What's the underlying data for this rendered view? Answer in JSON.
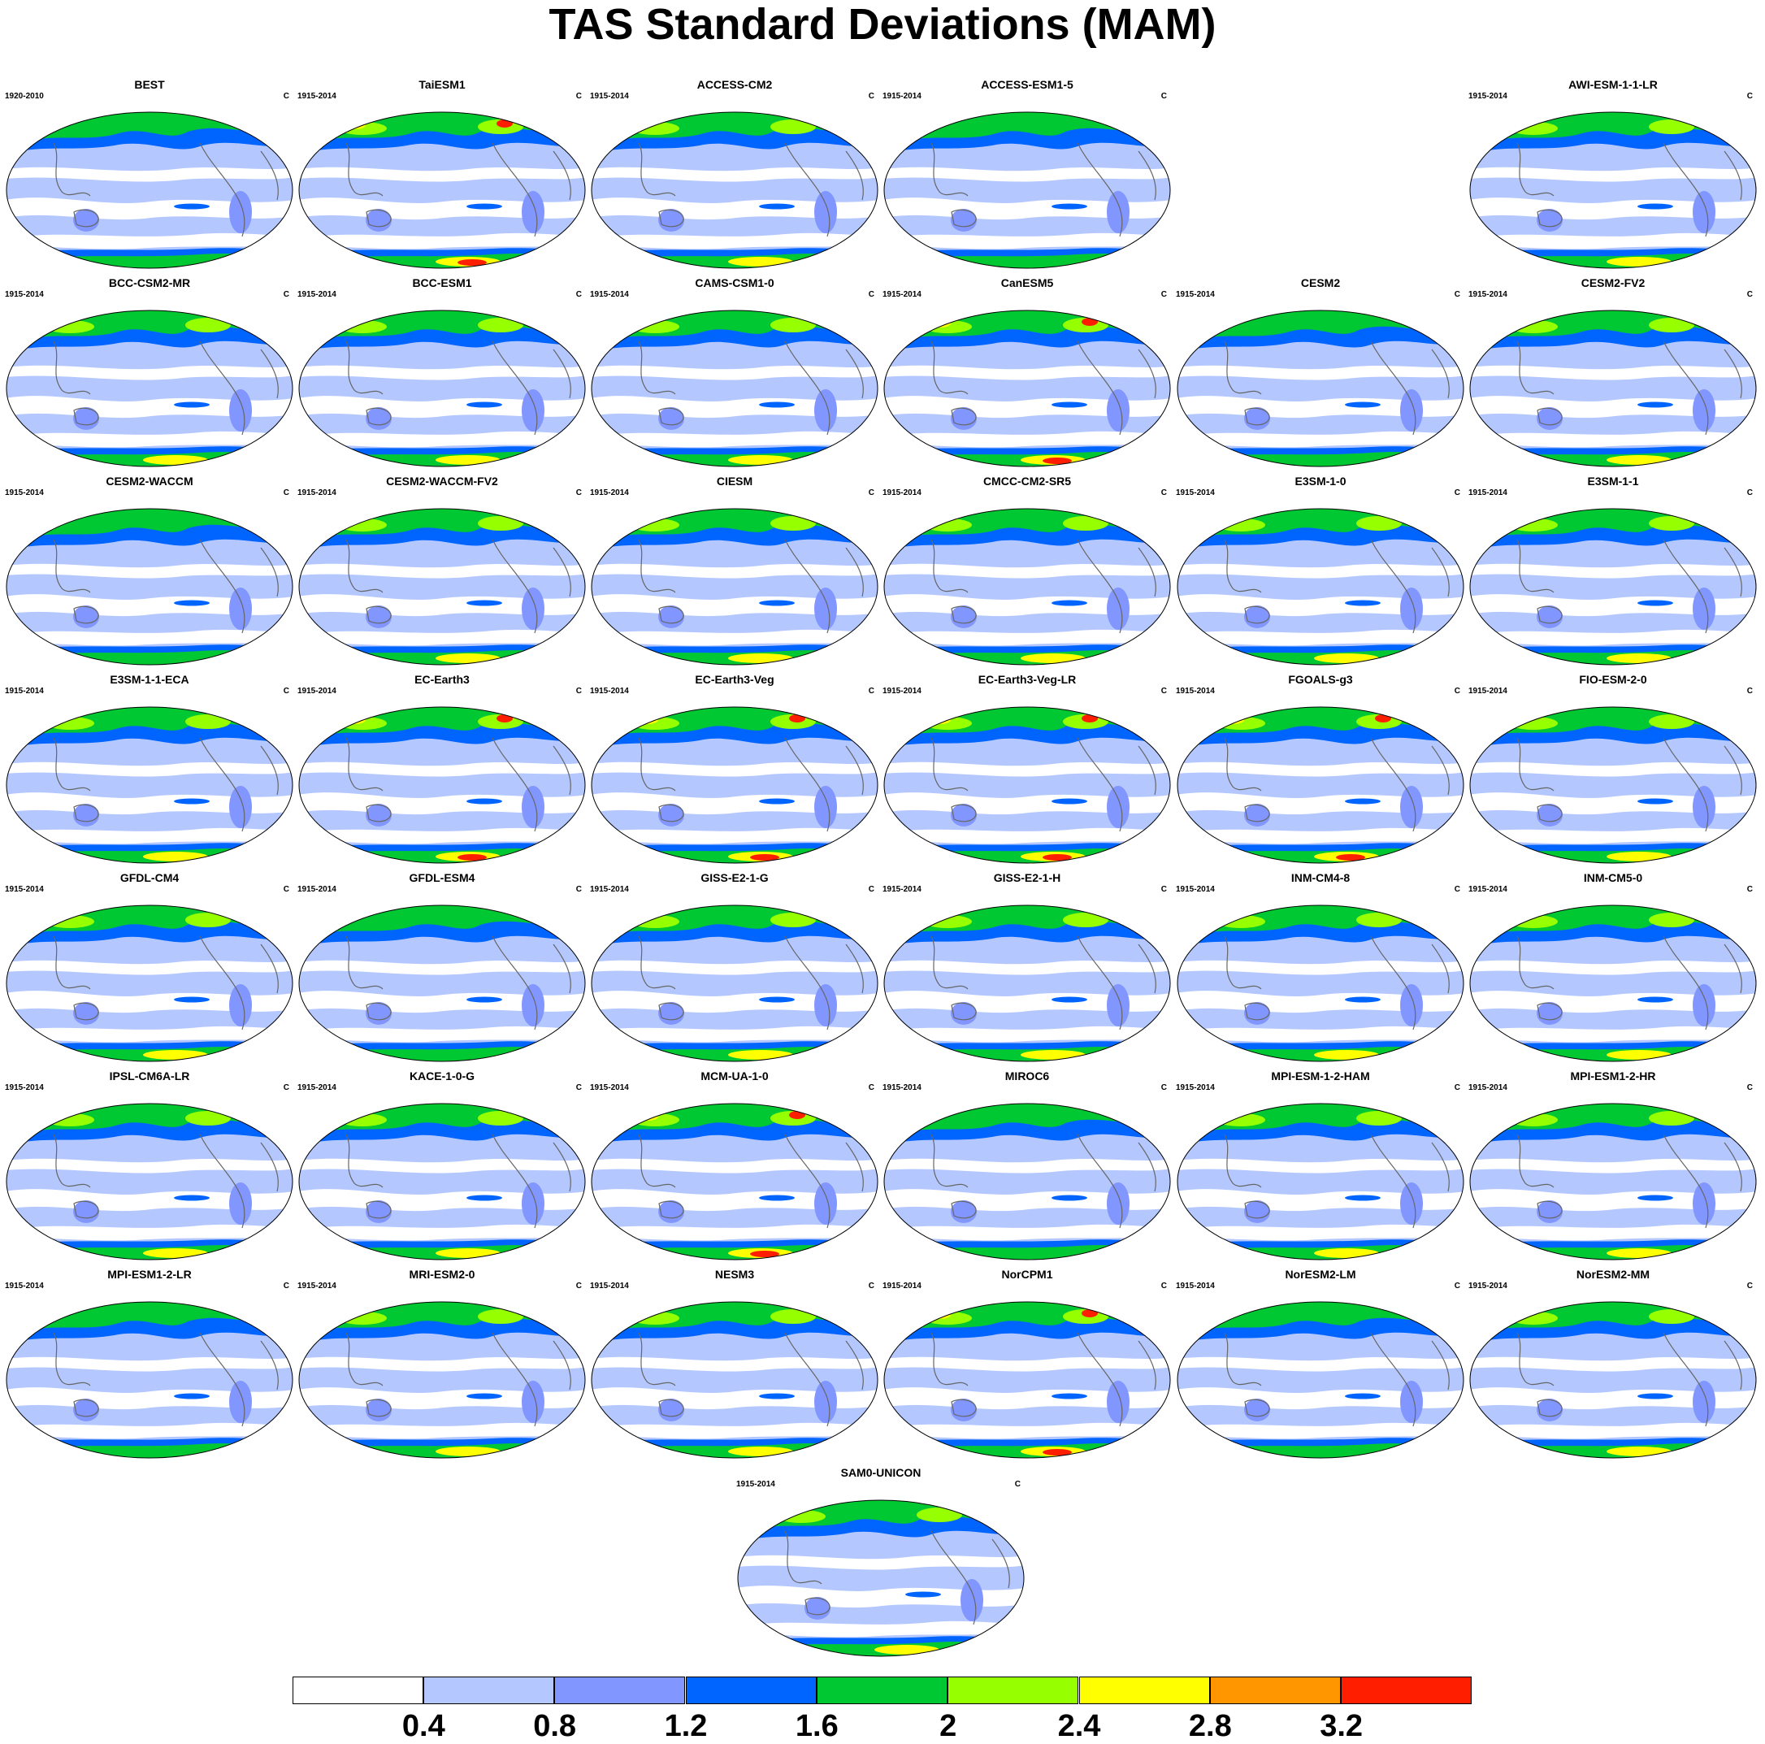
{
  "title": "TAS Standard Deviations (MAM)",
  "units_label": "C",
  "panels": [
    {
      "name": "BEST",
      "period": "1920-2010",
      "units": "C",
      "style": 0
    },
    {
      "name": "TaiESM1",
      "period": "1915-2014",
      "units": "C",
      "style": 2
    },
    {
      "name": "ACCESS-CM2",
      "period": "1915-2014",
      "units": "C",
      "style": 1
    },
    {
      "name": "ACCESS-ESM1-5",
      "period": "1915-2014",
      "units": "C",
      "style": 0
    },
    {
      "name": "AWI-ESM-1-1-LR",
      "period": "1915-2014",
      "units": "C",
      "style": 1
    },
    {
      "name": "BCC-CSM2-MR",
      "period": "1915-2014",
      "units": "C",
      "style": 1
    },
    {
      "name": "BCC-ESM1",
      "period": "1915-2014",
      "units": "C",
      "style": 1
    },
    {
      "name": "CAMS-CSM1-0",
      "period": "1915-2014",
      "units": "C",
      "style": 1
    },
    {
      "name": "CanESM5",
      "period": "1915-2014",
      "units": "C",
      "style": 2
    },
    {
      "name": "CESM2",
      "period": "1915-2014",
      "units": "C",
      "style": 0
    },
    {
      "name": "CESM2-FV2",
      "period": "1915-2014",
      "units": "C",
      "style": 1
    },
    {
      "name": "CESM2-WACCM",
      "period": "1915-2014",
      "units": "C",
      "style": 0
    },
    {
      "name": "CESM2-WACCM-FV2",
      "period": "1915-2014",
      "units": "C",
      "style": 1
    },
    {
      "name": "CIESM",
      "period": "1915-2014",
      "units": "C",
      "style": 1
    },
    {
      "name": "CMCC-CM2-SR5",
      "period": "1915-2014",
      "units": "C",
      "style": 1
    },
    {
      "name": "E3SM-1-0",
      "period": "1915-2014",
      "units": "C",
      "style": 1
    },
    {
      "name": "E3SM-1-1",
      "period": "1915-2014",
      "units": "C",
      "style": 1
    },
    {
      "name": "E3SM-1-1-ECA",
      "period": "1915-2014",
      "units": "C",
      "style": 1
    },
    {
      "name": "EC-Earth3",
      "period": "1915-2014",
      "units": "C",
      "style": 2
    },
    {
      "name": "EC-Earth3-Veg",
      "period": "1915-2014",
      "units": "C",
      "style": 2
    },
    {
      "name": "EC-Earth3-Veg-LR",
      "period": "1915-2014",
      "units": "C",
      "style": 2
    },
    {
      "name": "FGOALS-g3",
      "period": "1915-2014",
      "units": "C",
      "style": 2
    },
    {
      "name": "FIO-ESM-2-0",
      "period": "1915-2014",
      "units": "C",
      "style": 1
    },
    {
      "name": "GFDL-CM4",
      "period": "1915-2014",
      "units": "C",
      "style": 1
    },
    {
      "name": "GFDL-ESM4",
      "period": "1915-2014",
      "units": "C",
      "style": 0
    },
    {
      "name": "GISS-E2-1-G",
      "period": "1915-2014",
      "units": "C",
      "style": 1
    },
    {
      "name": "GISS-E2-1-H",
      "period": "1915-2014",
      "units": "C",
      "style": 1
    },
    {
      "name": "INM-CM4-8",
      "period": "1915-2014",
      "units": "C",
      "style": 1
    },
    {
      "name": "INM-CM5-0",
      "period": "1915-2014",
      "units": "C",
      "style": 1
    },
    {
      "name": "IPSL-CM6A-LR",
      "period": "1915-2014",
      "units": "C",
      "style": 1
    },
    {
      "name": "KACE-1-0-G",
      "period": "1915-2014",
      "units": "C",
      "style": 1
    },
    {
      "name": "MCM-UA-1-0",
      "period": "1915-2014",
      "units": "C",
      "style": 2
    },
    {
      "name": "MIROC6",
      "period": "1915-2014",
      "units": "C",
      "style": 0
    },
    {
      "name": "MPI-ESM-1-2-HAM",
      "period": "1915-2014",
      "units": "C",
      "style": 1
    },
    {
      "name": "MPI-ESM1-2-HR",
      "period": "1915-2014",
      "units": "C",
      "style": 1
    },
    {
      "name": "MPI-ESM1-2-LR",
      "period": "1915-2014",
      "units": "C",
      "style": 0
    },
    {
      "name": "MRI-ESM2-0",
      "period": "1915-2014",
      "units": "C",
      "style": 1
    },
    {
      "name": "NESM3",
      "period": "1915-2014",
      "units": "C",
      "style": 1
    },
    {
      "name": "NorCPM1",
      "period": "1915-2014",
      "units": "C",
      "style": 2
    },
    {
      "name": "NorESM2-LM",
      "period": "1915-2014",
      "units": "C",
      "style": 0
    },
    {
      "name": "NorESM2-MM",
      "period": "1915-2014",
      "units": "C",
      "style": 1
    },
    {
      "name": "SAM0-UNICON",
      "period": "1915-2014",
      "units": "C",
      "style": 1
    }
  ],
  "colorbar": {
    "levels": [
      "0.4",
      "0.8",
      "1.2",
      "1.6",
      "2",
      "2.4",
      "2.8",
      "3.2"
    ],
    "colors": [
      "#ffffff",
      "#b4c8ff",
      "#8296ff",
      "#0064ff",
      "#00c832",
      "#96ff00",
      "#ffff00",
      "#ff9600",
      "#ff1e00"
    ]
  }
}
